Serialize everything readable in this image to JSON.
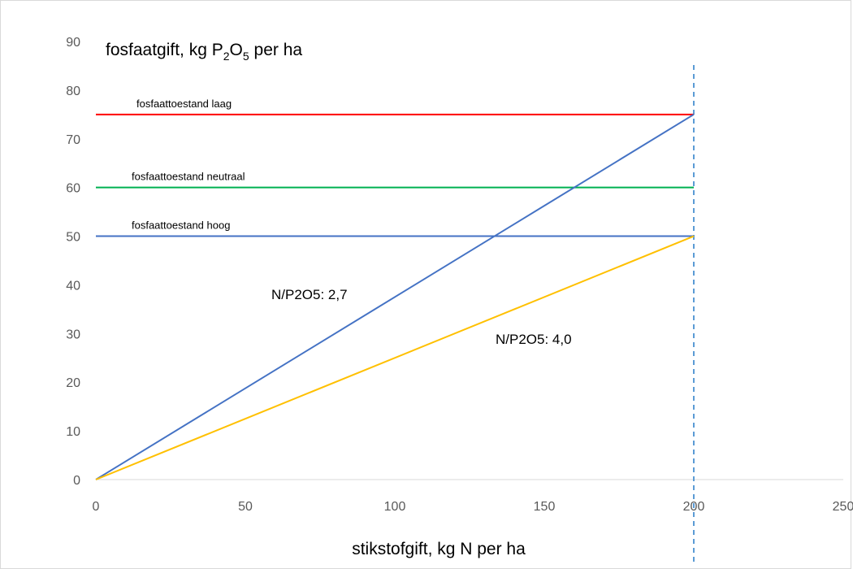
{
  "chart_data": {
    "type": "line",
    "ylabel_parts": [
      "fosfaatgift, kg P",
      "2",
      "O",
      "5",
      " per ha"
    ],
    "xlabel": "stikstofgift, kg N per ha",
    "xlim": [
      0,
      250
    ],
    "ylim": [
      0,
      90
    ],
    "x_ticks": [
      "0",
      "50",
      "100",
      "150",
      "200",
      "250"
    ],
    "y_ticks": [
      "0",
      "10",
      "20",
      "30",
      "40",
      "50",
      "60",
      "70",
      "80",
      "90"
    ],
    "grid": false,
    "series": [
      {
        "name": "fosfaattoestand laag",
        "x": [
          0,
          200
        ],
        "y": [
          75,
          75
        ],
        "color": "#ff0000"
      },
      {
        "name": "fosfaattoestand neutraal",
        "x": [
          0,
          200
        ],
        "y": [
          60,
          60
        ],
        "color": "#00b050"
      },
      {
        "name": "fosfaattoestand hoog",
        "x": [
          0,
          200
        ],
        "y": [
          50,
          50
        ],
        "color": "#4472c4"
      },
      {
        "name": "N/P2O5: 2,7",
        "x": [
          0,
          200
        ],
        "y": [
          0,
          75
        ],
        "color": "#4472c4"
      },
      {
        "name": "N/P2O5: 4,0",
        "x": [
          0,
          200
        ],
        "y": [
          0,
          50
        ],
        "color": "#ffc000"
      }
    ],
    "vertical_reference": {
      "x": 200,
      "style": "dashed",
      "color": "#5b9bd5"
    }
  }
}
